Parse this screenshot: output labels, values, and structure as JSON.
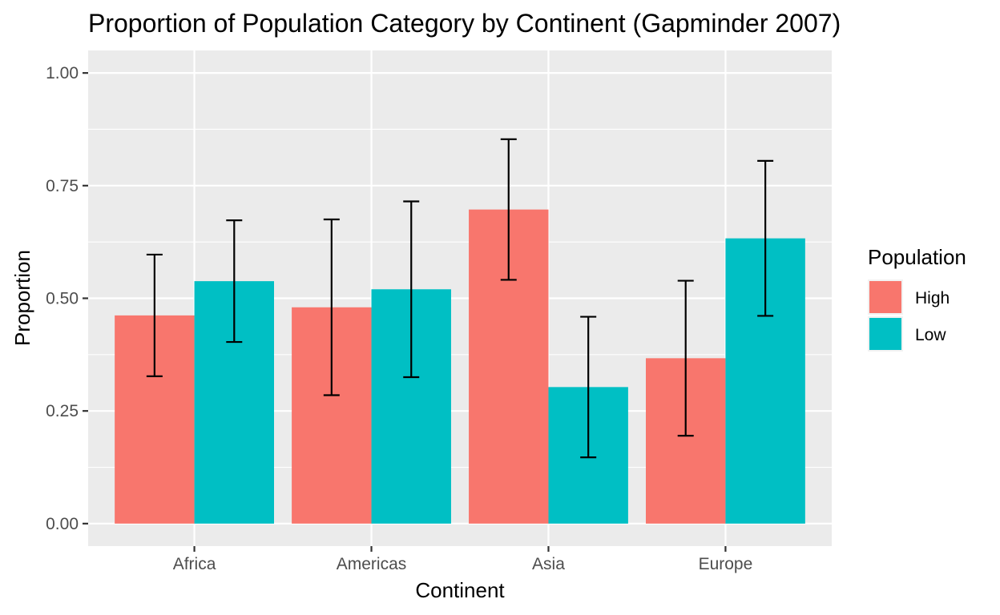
{
  "chart_data": {
    "type": "bar",
    "title": "Proportion of Population Category by Continent (Gapminder 2007)",
    "xlabel": "Continent",
    "ylabel": "Proportion",
    "categories": [
      "Africa",
      "Americas",
      "Asia",
      "Europe"
    ],
    "ylim": [
      -0.05,
      1.05
    ],
    "yticks": [
      0.0,
      0.25,
      0.5,
      0.75,
      1.0
    ],
    "ytick_labels": [
      "0.00",
      "0.25",
      "0.50",
      "0.75",
      "1.00"
    ],
    "grid": true,
    "legend": {
      "title": "Population",
      "position": "right"
    },
    "series": [
      {
        "name": "High",
        "color": "#F8766D",
        "values": [
          0.462,
          0.48,
          0.697,
          0.367
        ],
        "error_low": [
          0.327,
          0.285,
          0.541,
          0.195
        ],
        "error_high": [
          0.597,
          0.675,
          0.853,
          0.539
        ]
      },
      {
        "name": "Low",
        "color": "#00BFC4",
        "values": [
          0.538,
          0.52,
          0.303,
          0.633
        ],
        "error_low": [
          0.403,
          0.325,
          0.147,
          0.461
        ],
        "error_high": [
          0.673,
          0.715,
          0.459,
          0.805
        ]
      }
    ]
  }
}
